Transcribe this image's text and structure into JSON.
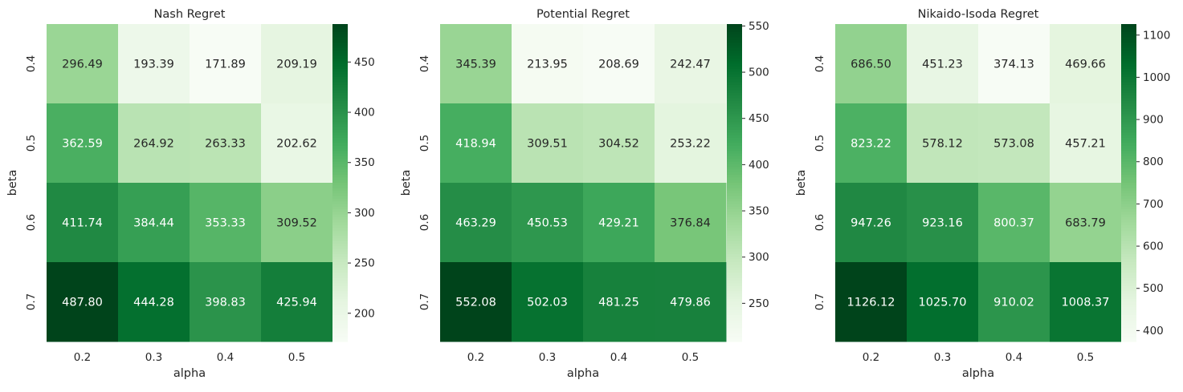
{
  "chart_data": [
    {
      "type": "heatmap",
      "title": "Nash Regret",
      "xlabel": "alpha",
      "ylabel": "beta",
      "x": [
        "0.2",
        "0.3",
        "0.4",
        "0.5"
      ],
      "y": [
        "0.4",
        "0.5",
        "0.6",
        "0.7"
      ],
      "values": [
        [
          296.49,
          193.39,
          171.89,
          209.19
        ],
        [
          362.59,
          264.92,
          263.33,
          202.62
        ],
        [
          411.74,
          384.44,
          353.33,
          309.52
        ],
        [
          487.8,
          444.28,
          398.83,
          425.94
        ]
      ],
      "colorbar": {
        "min": 171.89,
        "max": 487.8,
        "ticks": [
          "200",
          "250",
          "300",
          "350",
          "400",
          "450"
        ],
        "tick_values": [
          200,
          250,
          300,
          350,
          400,
          450
        ]
      },
      "colormap": "Greens"
    },
    {
      "type": "heatmap",
      "title": "Potential Regret",
      "xlabel": "alpha",
      "ylabel": "beta",
      "x": [
        "0.2",
        "0.3",
        "0.4",
        "0.5"
      ],
      "y": [
        "0.4",
        "0.5",
        "0.6",
        "0.7"
      ],
      "values": [
        [
          345.39,
          213.95,
          208.69,
          242.47
        ],
        [
          418.94,
          309.51,
          304.52,
          253.22
        ],
        [
          463.29,
          450.53,
          429.21,
          376.84
        ],
        [
          552.08,
          502.03,
          481.25,
          479.86
        ]
      ],
      "colorbar": {
        "min": 208.69,
        "max": 552.08,
        "ticks": [
          "250",
          "300",
          "350",
          "400",
          "450",
          "500",
          "550"
        ],
        "tick_values": [
          250,
          300,
          350,
          400,
          450,
          500,
          550
        ]
      },
      "colormap": "Greens"
    },
    {
      "type": "heatmap",
      "title": "Nikaido-Isoda Regret",
      "xlabel": "alpha",
      "ylabel": "beta",
      "x": [
        "0.2",
        "0.3",
        "0.4",
        "0.5"
      ],
      "y": [
        "0.4",
        "0.5",
        "0.6",
        "0.7"
      ],
      "values": [
        [
          686.5,
          451.23,
          374.13,
          469.66
        ],
        [
          823.22,
          578.12,
          573.08,
          457.21
        ],
        [
          947.26,
          923.16,
          800.37,
          683.79
        ],
        [
          1126.12,
          1025.7,
          910.02,
          1008.37
        ]
      ],
      "colorbar": {
        "min": 374.13,
        "max": 1126.12,
        "ticks": [
          "400",
          "500",
          "600",
          "700",
          "800",
          "900",
          "1000",
          "1100"
        ],
        "tick_values": [
          400,
          500,
          600,
          700,
          800,
          900,
          1000,
          1100
        ]
      },
      "colormap": "Greens"
    }
  ]
}
